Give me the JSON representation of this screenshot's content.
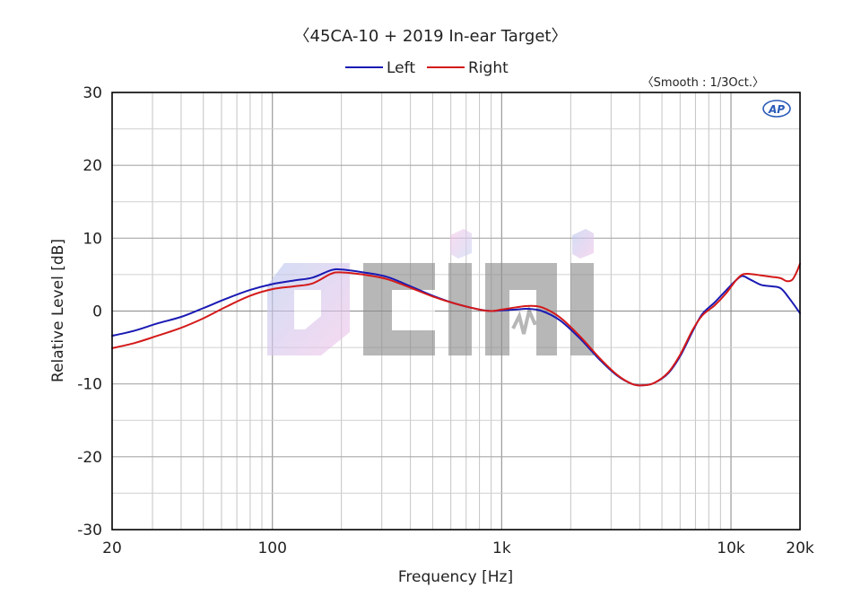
{
  "chart_data": {
    "type": "line",
    "title": "〈45CA-10 + 2019 In-ear Target〉",
    "smoothing_note": "〈Smooth : 1/3Oct.〉",
    "brand_mark": "AP",
    "watermark": "Cimi",
    "xlabel": "Frequency [Hz]",
    "ylabel": "Relative Level [dB]",
    "x_scale": "log",
    "xlim": [
      20,
      20000
    ],
    "ylim": [
      -30,
      30
    ],
    "x_ticks": [
      {
        "value": 20,
        "label": "20"
      },
      {
        "value": 100,
        "label": "100"
      },
      {
        "value": 1000,
        "label": "1k"
      },
      {
        "value": 10000,
        "label": "10k"
      },
      {
        "value": 20000,
        "label": "20k"
      }
    ],
    "y_ticks": [
      {
        "value": 30,
        "label": "30"
      },
      {
        "value": 20,
        "label": "20"
      },
      {
        "value": 10,
        "label": "10"
      },
      {
        "value": 0,
        "label": "0"
      },
      {
        "value": -10,
        "label": "-10"
      },
      {
        "value": -20,
        "label": "-20"
      },
      {
        "value": -30,
        "label": "-30"
      }
    ],
    "grid": true,
    "legend_position": "top-center",
    "series": [
      {
        "name": "Left",
        "color": "#1a1ab4",
        "points": [
          [
            20,
            -3.4
          ],
          [
            25,
            -2.7
          ],
          [
            31.5,
            -1.7
          ],
          [
            40,
            -0.8
          ],
          [
            50,
            0.4
          ],
          [
            63,
            1.7
          ],
          [
            80,
            2.9
          ],
          [
            100,
            3.7
          ],
          [
            125,
            4.2
          ],
          [
            150,
            4.6
          ],
          [
            180,
            5.6
          ],
          [
            200,
            5.7
          ],
          [
            250,
            5.3
          ],
          [
            315,
            4.7
          ],
          [
            400,
            3.4
          ],
          [
            500,
            2.1
          ],
          [
            630,
            1.0
          ],
          [
            800,
            0.2
          ],
          [
            900,
            0.0
          ],
          [
            1000,
            0.1
          ],
          [
            1150,
            0.2
          ],
          [
            1300,
            0.3
          ],
          [
            1500,
            0.0
          ],
          [
            1800,
            -1.3
          ],
          [
            2200,
            -3.8
          ],
          [
            2700,
            -6.8
          ],
          [
            3200,
            -8.9
          ],
          [
            3700,
            -10.0
          ],
          [
            4100,
            -10.2
          ],
          [
            4600,
            -9.9
          ],
          [
            5300,
            -8.6
          ],
          [
            6000,
            -6.2
          ],
          [
            6800,
            -2.8
          ],
          [
            7500,
            -0.4
          ],
          [
            8500,
            1.2
          ],
          [
            9500,
            2.8
          ],
          [
            10500,
            4.2
          ],
          [
            11200,
            4.8
          ],
          [
            12000,
            4.4
          ],
          [
            13500,
            3.6
          ],
          [
            15000,
            3.4
          ],
          [
            16500,
            3.1
          ],
          [
            18000,
            1.7
          ],
          [
            20000,
            -0.3
          ]
        ]
      },
      {
        "name": "Right",
        "color": "#d41a1a",
        "points": [
          [
            20,
            -5.1
          ],
          [
            25,
            -4.4
          ],
          [
            31.5,
            -3.4
          ],
          [
            40,
            -2.3
          ],
          [
            50,
            -1.0
          ],
          [
            63,
            0.6
          ],
          [
            80,
            2.1
          ],
          [
            100,
            3.0
          ],
          [
            125,
            3.4
          ],
          [
            150,
            3.8
          ],
          [
            180,
            5.1
          ],
          [
            200,
            5.3
          ],
          [
            250,
            5.0
          ],
          [
            315,
            4.4
          ],
          [
            400,
            3.2
          ],
          [
            500,
            2.0
          ],
          [
            630,
            1.0
          ],
          [
            800,
            0.2
          ],
          [
            900,
            0.0
          ],
          [
            1000,
            0.2
          ],
          [
            1150,
            0.5
          ],
          [
            1300,
            0.7
          ],
          [
            1500,
            0.5
          ],
          [
            1800,
            -0.9
          ],
          [
            2200,
            -3.5
          ],
          [
            2700,
            -6.6
          ],
          [
            3200,
            -8.8
          ],
          [
            3700,
            -10.0
          ],
          [
            4100,
            -10.2
          ],
          [
            4600,
            -9.9
          ],
          [
            5300,
            -8.5
          ],
          [
            6000,
            -6.0
          ],
          [
            6800,
            -2.6
          ],
          [
            7500,
            -0.6
          ],
          [
            8500,
            0.8
          ],
          [
            9500,
            2.4
          ],
          [
            10500,
            4.2
          ],
          [
            11200,
            5.0
          ],
          [
            12000,
            5.1
          ],
          [
            13500,
            4.9
          ],
          [
            15000,
            4.7
          ],
          [
            16500,
            4.5
          ],
          [
            17500,
            4.1
          ],
          [
            18500,
            4.3
          ],
          [
            19300,
            5.3
          ],
          [
            20000,
            6.5
          ]
        ]
      }
    ]
  }
}
